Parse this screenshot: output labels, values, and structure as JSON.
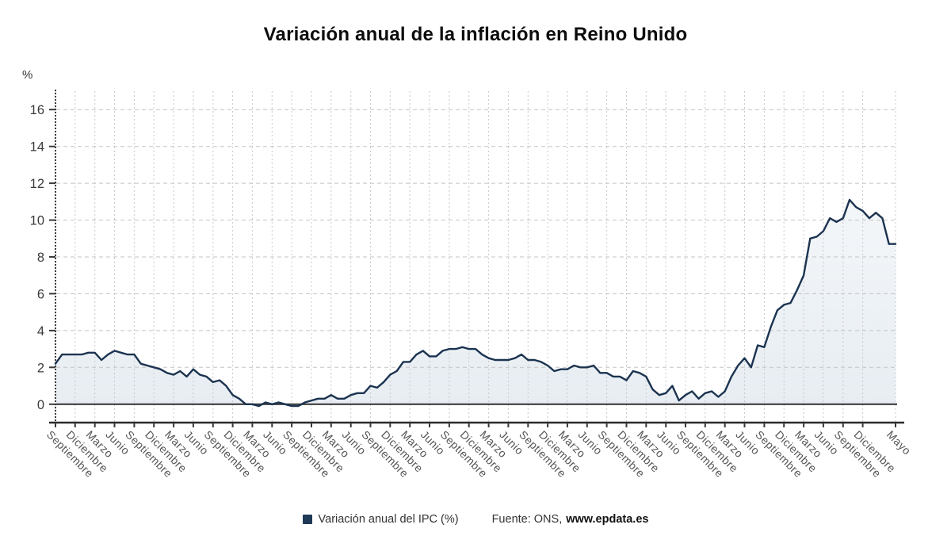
{
  "title": "Variación anual de la inflación en Reino Unido",
  "y_axis": {
    "unit_label": "%",
    "ticks": [
      0,
      2,
      4,
      6,
      8,
      10,
      12,
      14,
      16
    ]
  },
  "legend": {
    "series_label": "Variación anual del IPC (%)",
    "source_prefix": "Fuente: ONS,",
    "source_link": "www.epdata.es"
  },
  "colors": {
    "line": "#1b3350",
    "area_top": "#f8fafc",
    "area_bottom": "#e7edf2",
    "grid_h": "#c3c3c3",
    "grid_v": "#c9c9c9",
    "axis_dark": "#2b2b2b",
    "zero_line": "#3f3f3f",
    "y_axis_dashed": "#3d3d3d",
    "tick": "#3a3a3a",
    "y_tick_label": "#3b3b3b",
    "x_tick_label": "#555555",
    "legend_square": "#1e3a56"
  },
  "chart_data": {
    "type": "area",
    "title": "Variación anual de la inflación en Reino Unido",
    "xlabel": "",
    "ylabel": "%",
    "ylim": [
      -1,
      17
    ],
    "y_ticks": [
      0,
      2,
      4,
      6,
      8,
      10,
      12,
      14,
      16
    ],
    "grid": true,
    "legend_position": "bottom",
    "series": [
      {
        "name": "Variación anual del IPC (%)",
        "values": [
          2.2,
          2.7,
          2.7,
          2.7,
          2.7,
          2.8,
          2.8,
          2.4,
          2.7,
          2.9,
          2.8,
          2.7,
          2.7,
          2.2,
          2.1,
          2.0,
          1.9,
          1.7,
          1.6,
          1.8,
          1.5,
          1.9,
          1.6,
          1.5,
          1.2,
          1.3,
          1.0,
          0.5,
          0.3,
          0.0,
          0.0,
          -0.1,
          0.1,
          0.0,
          0.1,
          0.0,
          -0.1,
          -0.1,
          0.1,
          0.2,
          0.3,
          0.3,
          0.5,
          0.3,
          0.3,
          0.5,
          0.6,
          0.6,
          1.0,
          0.9,
          1.2,
          1.6,
          1.8,
          2.3,
          2.3,
          2.7,
          2.9,
          2.6,
          2.6,
          2.9,
          3.0,
          3.0,
          3.1,
          3.0,
          3.0,
          2.7,
          2.5,
          2.4,
          2.4,
          2.4,
          2.5,
          2.7,
          2.4,
          2.4,
          2.3,
          2.1,
          1.8,
          1.9,
          1.9,
          2.1,
          2.0,
          2.0,
          2.1,
          1.7,
          1.7,
          1.5,
          1.5,
          1.3,
          1.8,
          1.7,
          1.5,
          0.8,
          0.5,
          0.6,
          1.0,
          0.2,
          0.5,
          0.7,
          0.3,
          0.6,
          0.7,
          0.4,
          0.7,
          1.5,
          2.1,
          2.5,
          2.0,
          3.2,
          3.1,
          4.2,
          5.1,
          5.4,
          5.5,
          6.2,
          7.0,
          9.0,
          9.1,
          9.4,
          10.1,
          9.9,
          10.1,
          11.1,
          10.7,
          10.5,
          10.1,
          10.4,
          10.1,
          8.7,
          8.7
        ]
      }
    ],
    "x_ticks": [
      [
        0,
        "Septiembre"
      ],
      [
        3,
        "Diciembre"
      ],
      [
        6,
        "Marzo"
      ],
      [
        9,
        "Junio"
      ],
      [
        12,
        "Septiembre"
      ],
      [
        15,
        "Diciembre"
      ],
      [
        18,
        "Marzo"
      ],
      [
        21,
        "Junio"
      ],
      [
        24,
        "Septiembre"
      ],
      [
        27,
        "Diciembre"
      ],
      [
        30,
        "Marzo"
      ],
      [
        33,
        "Junio"
      ],
      [
        36,
        "Septiembre"
      ],
      [
        39,
        "Diciembre"
      ],
      [
        42,
        "Marzo"
      ],
      [
        45,
        "Junio"
      ],
      [
        48,
        "Septiembre"
      ],
      [
        51,
        "Diciembre"
      ],
      [
        54,
        "Marzo"
      ],
      [
        57,
        "Junio"
      ],
      [
        60,
        "Septiembre"
      ],
      [
        63,
        "Diciembre"
      ],
      [
        66,
        "Marzo"
      ],
      [
        69,
        "Junio"
      ],
      [
        72,
        "Septiembre"
      ],
      [
        75,
        "Diciembre"
      ],
      [
        78,
        "Marzo"
      ],
      [
        81,
        "Junio"
      ],
      [
        84,
        "Septiembre"
      ],
      [
        87,
        "Diciembre"
      ],
      [
        90,
        "Marzo"
      ],
      [
        93,
        "Junio"
      ],
      [
        96,
        "Septiembre"
      ],
      [
        99,
        "Diciembre"
      ],
      [
        102,
        "Marzo"
      ],
      [
        105,
        "Junio"
      ],
      [
        108,
        "Septiembre"
      ],
      [
        111,
        "Diciembre"
      ],
      [
        114,
        "Marzo"
      ],
      [
        117,
        "Junio"
      ],
      [
        120,
        "Septiembre"
      ],
      [
        123,
        "Diciembre"
      ],
      [
        128,
        "Mayo"
      ]
    ]
  }
}
